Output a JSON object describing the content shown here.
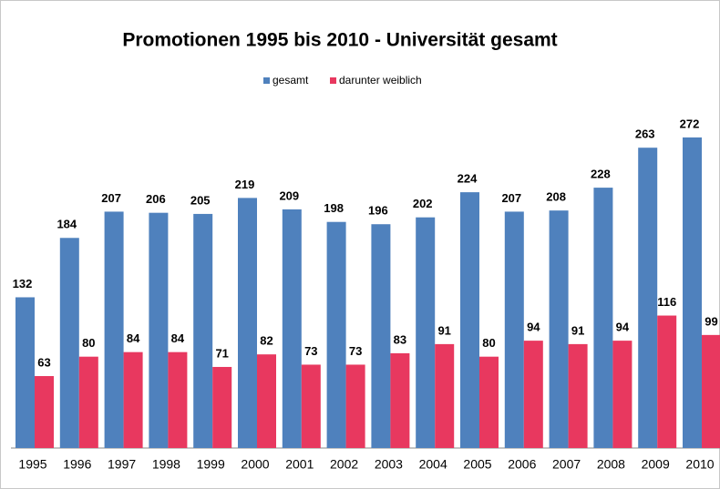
{
  "chart_data": {
    "type": "bar",
    "title": "Promotionen 1995 bis 2010 - Universität gesamt",
    "categories": [
      "1995",
      "1996",
      "1997",
      "1998",
      "1999",
      "2000",
      "2001",
      "2002",
      "2003",
      "2004",
      "2005",
      "2006",
      "2007",
      "2008",
      "2009",
      "2010"
    ],
    "series": [
      {
        "name": "gesamt",
        "color": "#4f81bd",
        "values": [
          132,
          184,
          207,
          206,
          205,
          219,
          209,
          198,
          196,
          202,
          224,
          207,
          208,
          228,
          263,
          272
        ]
      },
      {
        "name": "darunter weiblich",
        "color": "#e8385f",
        "values": [
          63,
          80,
          84,
          84,
          71,
          82,
          73,
          73,
          83,
          91,
          80,
          94,
          91,
          94,
          116,
          99
        ]
      }
    ],
    "legend": "top"
  }
}
